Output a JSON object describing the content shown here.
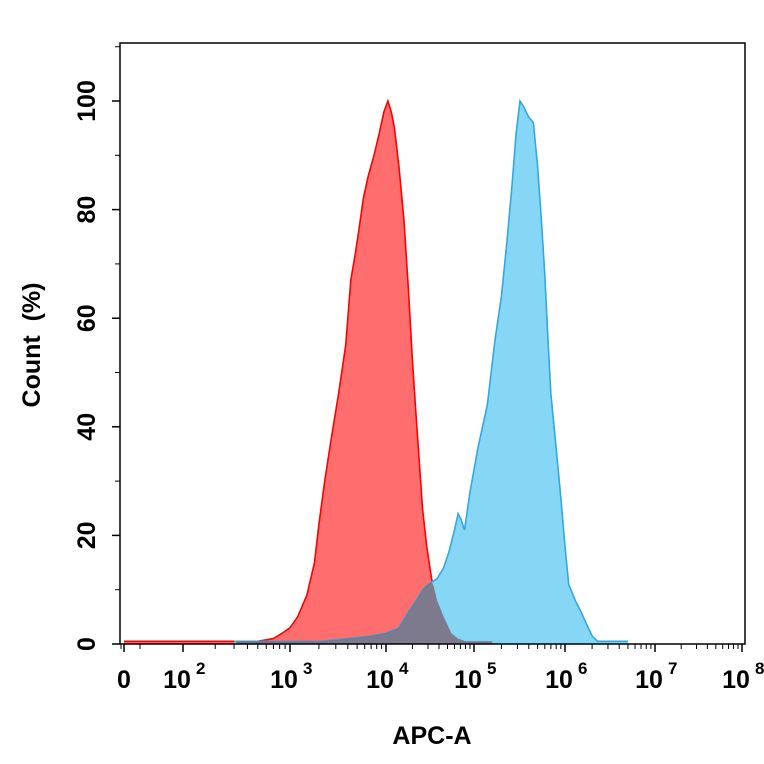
{
  "chart_data": {
    "type": "area",
    "xlabel": "APC-A",
    "ylabel": "Count (%)",
    "x_scale": "biexponential",
    "xlim": [
      -200,
      100000000
    ],
    "ylim": [
      0,
      110
    ],
    "x_ticks": [
      {
        "value": 0,
        "base": "0",
        "exp": ""
      },
      {
        "value": 100,
        "base": "10",
        "exp": "2"
      },
      {
        "value": 1000,
        "base": "10",
        "exp": "3"
      },
      {
        "value": 10000,
        "base": "10",
        "exp": "4"
      },
      {
        "value": 100000,
        "base": "10",
        "exp": "5"
      },
      {
        "value": 1000000,
        "base": "10",
        "exp": "6"
      },
      {
        "value": 10000000,
        "base": "10",
        "exp": "7"
      },
      {
        "value": 100000000,
        "base": "10",
        "exp": "8"
      }
    ],
    "y_ticks": [
      0,
      20,
      40,
      60,
      80,
      100
    ],
    "grid": false,
    "series": [
      {
        "color": "#ff0000",
        "fill": "#ff6666",
        "points": [
          [
            0,
            0.5
          ],
          [
            30,
            0.5
          ],
          [
            80,
            0.5
          ],
          [
            150,
            0.5
          ],
          [
            300,
            0.5
          ],
          [
            500,
            0.5
          ],
          [
            700,
            1
          ],
          [
            850,
            2
          ],
          [
            1000,
            3
          ],
          [
            1200,
            5
          ],
          [
            1500,
            9
          ],
          [
            1800,
            15
          ],
          [
            2000,
            22
          ],
          [
            2300,
            30
          ],
          [
            2700,
            38
          ],
          [
            3200,
            46
          ],
          [
            3800,
            55
          ],
          [
            4300,
            67
          ],
          [
            4800,
            72
          ],
          [
            5200,
            76
          ],
          [
            5800,
            82
          ],
          [
            6500,
            86
          ],
          [
            7500,
            90
          ],
          [
            8500,
            94
          ],
          [
            9500,
            98
          ],
          [
            10500,
            100
          ],
          [
            11500,
            98
          ],
          [
            12500,
            95
          ],
          [
            14000,
            88
          ],
          [
            16000,
            78
          ],
          [
            18000,
            65
          ],
          [
            20000,
            52
          ],
          [
            22000,
            42
          ],
          [
            24000,
            33
          ],
          [
            26000,
            25
          ],
          [
            29000,
            18
          ],
          [
            33000,
            12
          ],
          [
            38000,
            8
          ],
          [
            45000,
            5
          ],
          [
            55000,
            2
          ],
          [
            65000,
            1
          ],
          [
            80000,
            0.5
          ],
          [
            100000,
            0.5
          ],
          [
            200000,
            0.5
          ]
        ]
      },
      {
        "color": "#33a8df",
        "fill": "#80d5f5",
        "points": [
          [
            300,
            0.5
          ],
          [
            1000,
            0.5
          ],
          [
            2000,
            0.5
          ],
          [
            4000,
            1
          ],
          [
            7000,
            1.5
          ],
          [
            10000,
            2
          ],
          [
            14000,
            3
          ],
          [
            18000,
            6
          ],
          [
            22000,
            8
          ],
          [
            26000,
            10
          ],
          [
            30000,
            11
          ],
          [
            38000,
            12
          ],
          [
            45000,
            14
          ],
          [
            52000,
            17
          ],
          [
            60000,
            21
          ],
          [
            66000,
            24
          ],
          [
            71000,
            23
          ],
          [
            78000,
            21
          ],
          [
            90000,
            28
          ],
          [
            110000,
            36
          ],
          [
            140000,
            44
          ],
          [
            170000,
            56
          ],
          [
            200000,
            64
          ],
          [
            230000,
            74
          ],
          [
            260000,
            84
          ],
          [
            290000,
            94
          ],
          [
            320000,
            100
          ],
          [
            350000,
            99
          ],
          [
            400000,
            97
          ],
          [
            450000,
            96
          ],
          [
            500000,
            88
          ],
          [
            550000,
            78
          ],
          [
            600000,
            68
          ],
          [
            650000,
            56
          ],
          [
            700000,
            46
          ],
          [
            800000,
            36
          ],
          [
            900000,
            27
          ],
          [
            1000000,
            18
          ],
          [
            1100000,
            11
          ],
          [
            1300000,
            8
          ],
          [
            1500000,
            6
          ],
          [
            1700000,
            4
          ],
          [
            2000000,
            1.5
          ],
          [
            2300000,
            0.5
          ],
          [
            3000000,
            0.5
          ],
          [
            4000000,
            0.5
          ],
          [
            5000000,
            0.5
          ]
        ]
      }
    ]
  }
}
